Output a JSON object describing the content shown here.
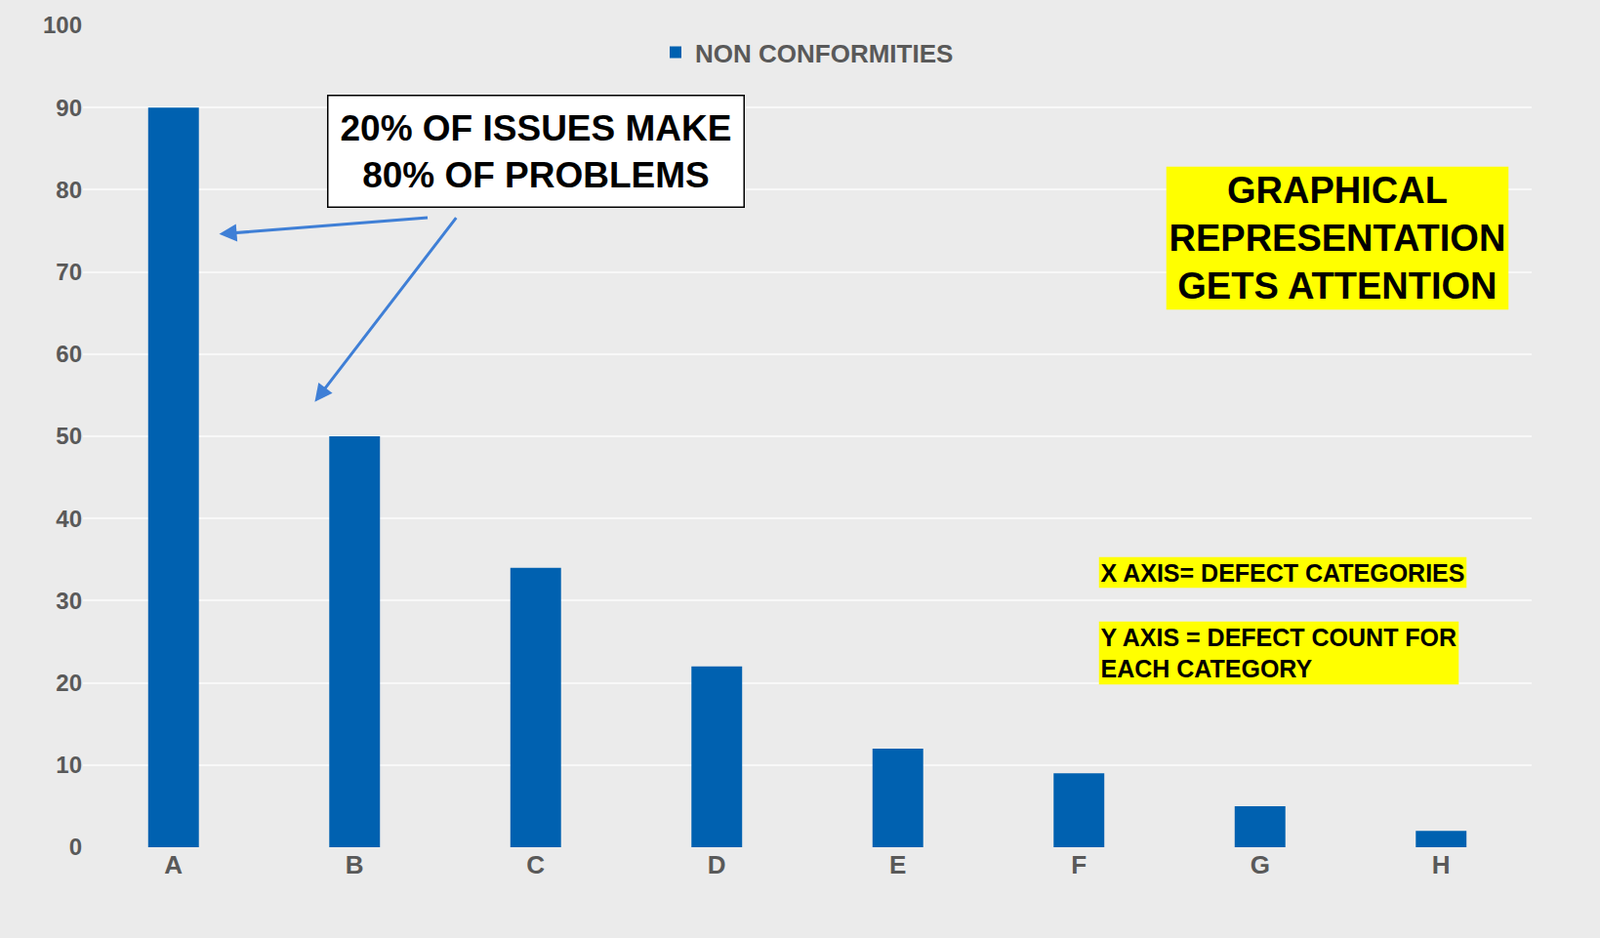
{
  "chart_data": {
    "type": "bar",
    "categories": [
      "A",
      "B",
      "C",
      "D",
      "E",
      "F",
      "G",
      "H"
    ],
    "series": [
      {
        "name": "NON CONFORMITIES",
        "color": "#0061b0",
        "values": [
          90,
          50,
          34,
          22,
          12,
          9,
          5,
          2
        ]
      }
    ],
    "ylim": [
      0,
      100
    ],
    "yticks": [
      0,
      10,
      20,
      30,
      40,
      50,
      60,
      70,
      80,
      90,
      100
    ],
    "grid": true,
    "legend": "top",
    "annotations": [
      [
        "20% OF ISSUES MAKE",
        "80% OF PROBLEMS"
      ],
      [
        "GRAPHICAL",
        "REPRESENTATION",
        "GETS ATTENTION"
      ],
      [
        "X AXIS= DEFECT CATEGORIES"
      ],
      [
        "Y AXIS = DEFECT COUNT FOR",
        "EACH CATEGORY"
      ]
    ]
  }
}
